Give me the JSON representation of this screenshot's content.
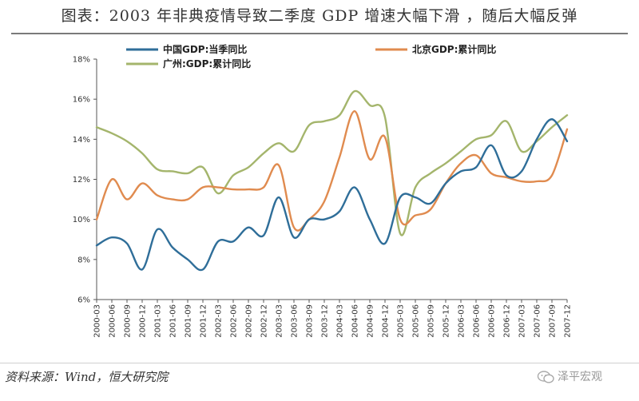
{
  "header": {
    "title": "图表：2003 年非典疫情导致二季度 GDP 增速大幅下滑 ，随后大幅反弹"
  },
  "footer": {
    "source": "资料来源：Wind，恒大研究院",
    "watermark": "泽平宏观"
  },
  "colors": {
    "china": "#2f6e99",
    "beijing": "#e08b4f",
    "guangzhou": "#a4b56c",
    "axis": "#555555"
  },
  "chart_data": {
    "type": "line",
    "title": "",
    "xlabel": "",
    "ylabel": "",
    "ylim": [
      0.06,
      0.18
    ],
    "yticks": [
      "6%",
      "8%",
      "10%",
      "12%",
      "14%",
      "16%",
      "18%"
    ],
    "x": [
      "2000-03",
      "2000-06",
      "2000-09",
      "2000-12",
      "2001-03",
      "2001-06",
      "2001-09",
      "2001-12",
      "2002-03",
      "2002-06",
      "2002-09",
      "2002-12",
      "2003-03",
      "2003-06",
      "2003-09",
      "2003-12",
      "2004-03",
      "2004-06",
      "2004-09",
      "2004-12",
      "2005-03",
      "2005-06",
      "2005-09",
      "2005-12",
      "2006-03",
      "2006-06",
      "2006-09",
      "2006-12",
      "2007-03",
      "2007-06",
      "2007-09",
      "2007-12"
    ],
    "legend": [
      {
        "key": "china",
        "label": "中国GDP:当季同比"
      },
      {
        "key": "beijing",
        "label": "北京GDP:累计同比"
      },
      {
        "key": "guangzhou",
        "label": "广州:GDP:累计同比"
      }
    ],
    "series": [
      {
        "name": "中国GDP:当季同比",
        "key": "china",
        "values": [
          0.087,
          0.091,
          0.088,
          0.075,
          0.095,
          0.086,
          0.08,
          0.075,
          0.089,
          0.089,
          0.096,
          0.092,
          0.111,
          0.091,
          0.1,
          0.1,
          0.104,
          0.116,
          0.1,
          0.088,
          0.111,
          0.111,
          0.108,
          0.118,
          0.124,
          0.126,
          0.137,
          0.122,
          0.124,
          0.14,
          0.15,
          0.139
        ]
      },
      {
        "name": "北京GDP:累计同比",
        "key": "beijing",
        "values": [
          0.1,
          0.12,
          0.11,
          0.118,
          0.112,
          0.11,
          0.11,
          0.116,
          0.116,
          0.115,
          0.115,
          0.116,
          0.127,
          0.096,
          0.1,
          0.109,
          0.131,
          0.154,
          0.13,
          0.141,
          0.1,
          0.102,
          0.105,
          0.118,
          0.128,
          0.132,
          0.123,
          0.121,
          0.119,
          0.119,
          0.122,
          0.145
        ]
      },
      {
        "name": "广州:GDP:累计同比",
        "key": "guangzhou",
        "values": [
          0.146,
          0.143,
          0.139,
          0.133,
          0.125,
          0.124,
          0.123,
          0.126,
          0.113,
          0.122,
          0.126,
          0.133,
          0.138,
          0.134,
          0.147,
          0.149,
          0.152,
          0.164,
          0.157,
          0.151,
          0.093,
          0.116,
          0.123,
          0.128,
          0.134,
          0.14,
          0.142,
          0.149,
          0.134,
          0.139,
          0.146,
          0.152
        ]
      }
    ]
  }
}
